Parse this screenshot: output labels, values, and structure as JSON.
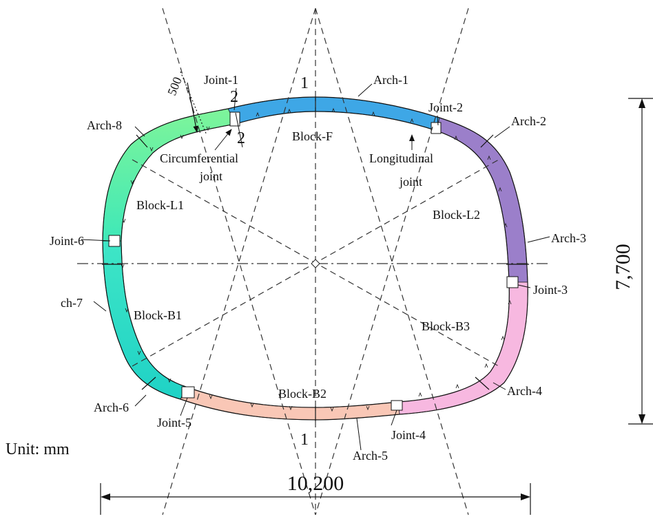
{
  "labels": {
    "joint_1": "Joint-1",
    "joint_2": "Joint-2",
    "joint_3": "Joint-3",
    "joint_4": "Joint-4",
    "joint_5": "Joint-5",
    "joint_6": "Joint-6",
    "arch_1": "Arch-1",
    "arch_2": "Arch-2",
    "arch_3": "Arch-3",
    "arch_4": "Arch-4",
    "arch_5": "Arch-5",
    "arch_6": "Arch-6",
    "arch_7": "ch-7",
    "arch_8": "Arch-8",
    "block_f": "Block-F",
    "block_l1": "Block-L1",
    "block_l2": "Block-L2",
    "block_b1": "Block-B1",
    "block_b2": "Block-B2",
    "block_b3": "Block-B3",
    "circumferential_joint_1": "Circumferential",
    "circumferential_joint_2": "joint",
    "longitudinal_joint_1": "Longitudinal",
    "longitudinal_joint_2": "joint",
    "section_top": "1",
    "section_bottom": "1",
    "section_2_top": "2",
    "section_2_bottom": "2",
    "thickness": "500",
    "unit": "Unit: mm"
  },
  "dimensions": {
    "width": "10,200",
    "height": "7,700"
  },
  "colors": {
    "block_f": "#3ea7e6",
    "block_l2": "#9b7fca",
    "block_b3": "#f7b8e0",
    "block_b2": "#f9c7b6",
    "block_b1": "#2ddfc8",
    "block_l1": "#5ef0a6"
  }
}
